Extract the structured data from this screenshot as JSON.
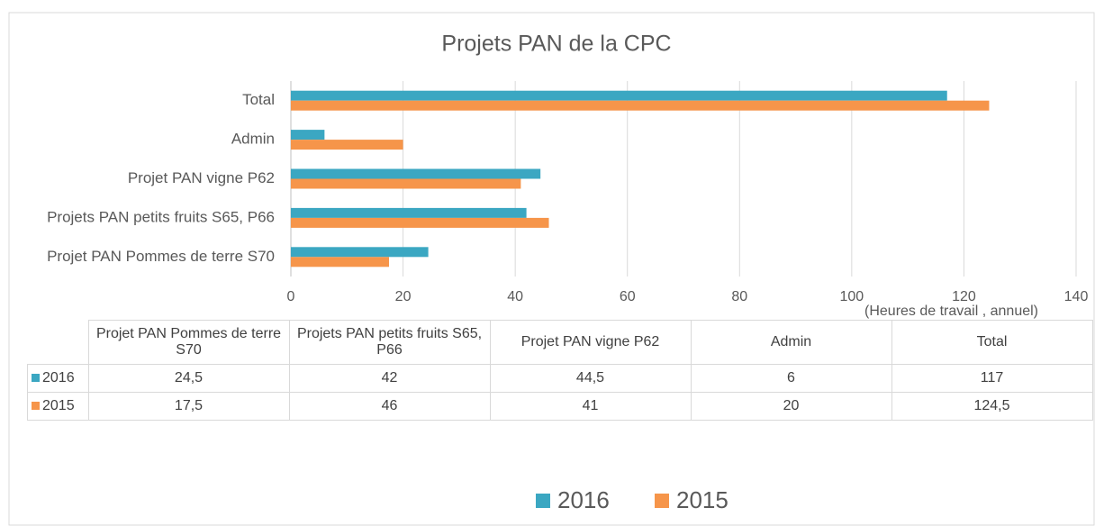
{
  "chart_data": {
    "type": "bar",
    "orientation": "horizontal",
    "title": "Projets PAN de la CPC",
    "x_label": "(Heures de travail , annuel)",
    "categories": [
      "Projet PAN Pommes de terre S70",
      "Projets PAN petits fruits S65, P66",
      "Projet PAN vigne P62",
      "Admin",
      "Total"
    ],
    "series": [
      {
        "name": "2016",
        "color": "#3ba7c2",
        "values": [
          24.5,
          42,
          44.5,
          6,
          117
        ],
        "value_labels": [
          "24,5",
          "42",
          "44,5",
          "6",
          "117"
        ]
      },
      {
        "name": "2015",
        "color": "#f6954a",
        "values": [
          17.5,
          46,
          41,
          20,
          124.5
        ],
        "value_labels": [
          "17,5",
          "46",
          "41",
          "20",
          "124,5"
        ]
      }
    ],
    "xlim": [
      0,
      140
    ],
    "xticks": [
      0,
      20,
      40,
      60,
      80,
      100,
      120,
      140
    ],
    "grid": true,
    "legend": "bottom"
  }
}
